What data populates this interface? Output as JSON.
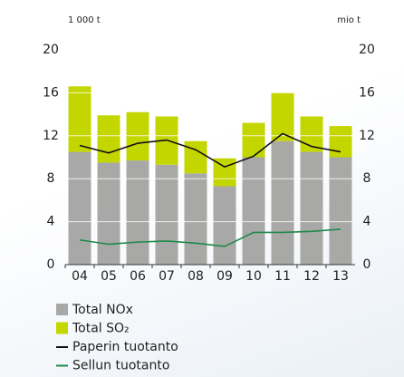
{
  "chart_data": {
    "type": "bar",
    "y_label": "1 000 t",
    "y2_label": "mio t",
    "categories": [
      "04",
      "05",
      "06",
      "07",
      "08",
      "09",
      "10",
      "11",
      "12",
      "13"
    ],
    "series": [
      {
        "name": "Total NOx",
        "type": "bar",
        "color": "#a8a8a6",
        "values": [
          10.5,
          9.5,
          9.7,
          9.3,
          8.5,
          7.3,
          10.0,
          11.5,
          10.5,
          10.0
        ]
      },
      {
        "name": "Total SO₂",
        "type": "bar",
        "color": "#c4d600",
        "values": [
          6.1,
          4.4,
          4.5,
          4.5,
          3.0,
          2.6,
          3.2,
          4.5,
          3.3,
          2.9
        ]
      },
      {
        "name": "Paperin tuotanto",
        "type": "line",
        "axis": "y2",
        "color": "#111111",
        "values": [
          11.1,
          10.4,
          11.3,
          11.6,
          10.7,
          9.1,
          10.1,
          12.2,
          11.0,
          10.5
        ]
      },
      {
        "name": "Sellun tuotanto",
        "type": "line",
        "axis": "y2",
        "color": "#1e8a4a",
        "values": [
          2.3,
          1.9,
          2.1,
          2.2,
          2.0,
          1.7,
          3.0,
          3.0,
          3.1,
          3.3
        ]
      }
    ],
    "ylim": [
      0,
      20
    ],
    "yticks": [
      0,
      4,
      8,
      12,
      16,
      20
    ],
    "y2lim": [
      0,
      20
    ],
    "y2ticks": [
      0,
      4,
      8,
      12,
      16,
      20
    ],
    "stacked": true,
    "grid": true
  }
}
